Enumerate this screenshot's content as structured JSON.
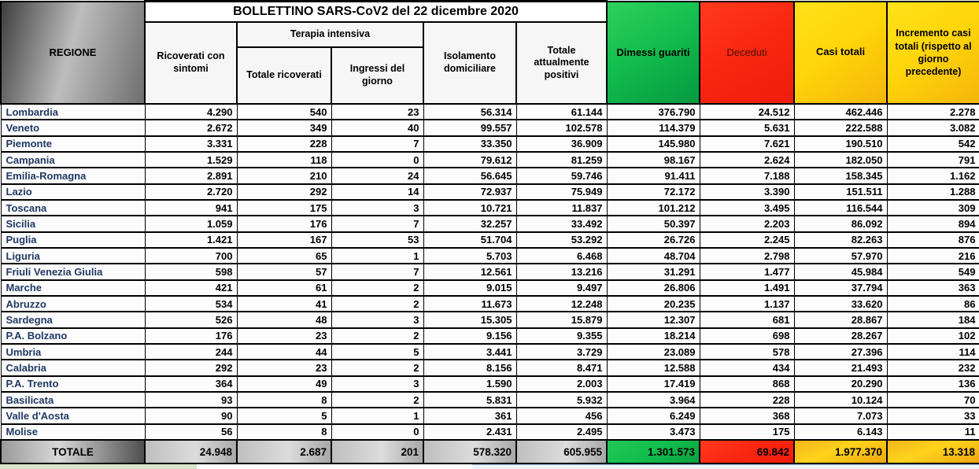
{
  "title": "BOLLETTINO SARS-CoV2 del 22 dicembre 2020",
  "header": {
    "regione": "REGIONE",
    "ricoverati_con_sintomi": "Ricoverati con sintomi",
    "terapia_intensiva": "Terapia intensiva",
    "totale_ricoverati": "Totale ricoverati",
    "ingressi_del_giorno": "Ingressi del giorno",
    "isolamento_domiciliare": "Isolamento domiciliare",
    "totale_attualmente_positivi": "Totale attualmente positivi",
    "dimessi_guariti": "Dimessi guariti",
    "deceduti": "Deceduti",
    "casi_totali": "Casi totali",
    "incremento_casi_totali": "Incremento casi totali (rispetto al giorno precedente)"
  },
  "colors": {
    "dimessi_bg": "#12BE4E",
    "deceduti_bg": "#F9260F",
    "deceduti_text": "#4A1408",
    "yellow_bg": "#FFD60A",
    "region_text": "#1F3864",
    "grid": "#000000"
  },
  "chart_data": {
    "type": "table",
    "title": "BOLLETTINO SARS-CoV2 del 22 dicembre 2020",
    "columns": [
      "REGIONE",
      "Ricoverati con sintomi",
      "Terapia intensiva - Totale ricoverati",
      "Terapia intensiva - Ingressi del giorno",
      "Isolamento domiciliare",
      "Totale attualmente positivi",
      "Dimessi guariti",
      "Deceduti",
      "Casi totali",
      "Incremento casi totali (rispetto al giorno precedente)"
    ],
    "rows": [
      [
        "Lombardia",
        "4.290",
        "540",
        "23",
        "56.314",
        "61.144",
        "376.790",
        "24.512",
        "462.446",
        "2.278"
      ],
      [
        "Veneto",
        "2.672",
        "349",
        "40",
        "99.557",
        "102.578",
        "114.379",
        "5.631",
        "222.588",
        "3.082"
      ],
      [
        "Piemonte",
        "3.331",
        "228",
        "7",
        "33.350",
        "36.909",
        "145.980",
        "7.621",
        "190.510",
        "542"
      ],
      [
        "Campania",
        "1.529",
        "118",
        "0",
        "79.612",
        "81.259",
        "98.167",
        "2.624",
        "182.050",
        "791"
      ],
      [
        "Emilia-Romagna",
        "2.891",
        "210",
        "24",
        "56.645",
        "59.746",
        "91.411",
        "7.188",
        "158.345",
        "1.162"
      ],
      [
        "Lazio",
        "2.720",
        "292",
        "14",
        "72.937",
        "75.949",
        "72.172",
        "3.390",
        "151.511",
        "1.288"
      ],
      [
        "Toscana",
        "941",
        "175",
        "3",
        "10.721",
        "11.837",
        "101.212",
        "3.495",
        "116.544",
        "309"
      ],
      [
        "Sicilia",
        "1.059",
        "176",
        "7",
        "32.257",
        "33.492",
        "50.397",
        "2.203",
        "86.092",
        "894"
      ],
      [
        "Puglia",
        "1.421",
        "167",
        "53",
        "51.704",
        "53.292",
        "26.726",
        "2.245",
        "82.263",
        "876"
      ],
      [
        "Liguria",
        "700",
        "65",
        "1",
        "5.703",
        "6.468",
        "48.704",
        "2.798",
        "57.970",
        "216"
      ],
      [
        "Friuli Venezia Giulia",
        "598",
        "57",
        "7",
        "12.561",
        "13.216",
        "31.291",
        "1.477",
        "45.984",
        "549"
      ],
      [
        "Marche",
        "421",
        "61",
        "2",
        "9.015",
        "9.497",
        "26.806",
        "1.491",
        "37.794",
        "363"
      ],
      [
        "Abruzzo",
        "534",
        "41",
        "2",
        "11.673",
        "12.248",
        "20.235",
        "1.137",
        "33.620",
        "86"
      ],
      [
        "Sardegna",
        "526",
        "48",
        "3",
        "15.305",
        "15.879",
        "12.307",
        "681",
        "28.867",
        "184"
      ],
      [
        "P.A. Bolzano",
        "176",
        "23",
        "2",
        "9.156",
        "9.355",
        "18.214",
        "698",
        "28.267",
        "102"
      ],
      [
        "Umbria",
        "244",
        "44",
        "5",
        "3.441",
        "3.729",
        "23.089",
        "578",
        "27.396",
        "114"
      ],
      [
        "Calabria",
        "292",
        "23",
        "2",
        "8.156",
        "8.471",
        "12.588",
        "434",
        "21.493",
        "232"
      ],
      [
        "P.A. Trento",
        "364",
        "49",
        "3",
        "1.590",
        "2.003",
        "17.419",
        "868",
        "20.290",
        "136"
      ],
      [
        "Basilicata",
        "93",
        "8",
        "2",
        "5.831",
        "5.932",
        "3.964",
        "228",
        "10.124",
        "70"
      ],
      [
        "Valle d'Aosta",
        "90",
        "5",
        "1",
        "361",
        "456",
        "6.249",
        "368",
        "7.073",
        "33"
      ],
      [
        "Molise",
        "56",
        "8",
        "0",
        "2.431",
        "2.495",
        "3.473",
        "175",
        "6.143",
        "11"
      ]
    ],
    "totale": [
      "TOTALE",
      "24.948",
      "2.687",
      "201",
      "578.320",
      "605.955",
      "1.301.573",
      "69.842",
      "1.977.370",
      "13.318"
    ]
  }
}
